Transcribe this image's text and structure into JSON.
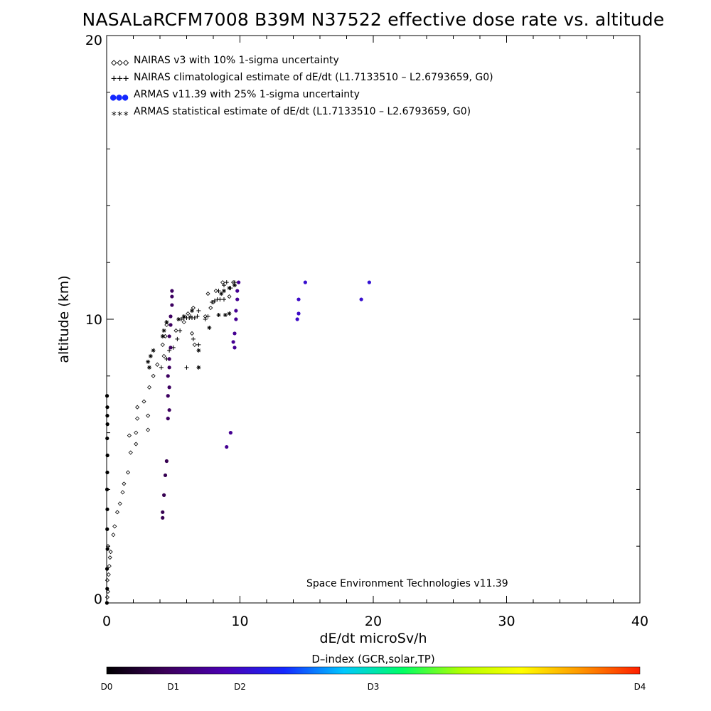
{
  "chart_data": {
    "type": "scatter",
    "title": "NASALaRCFM7008  B39M N37522 effective dose rate vs. altitude",
    "xlabel": "dE/dt microSv/h",
    "ylabel": "altitude (km)",
    "xlim": [
      0,
      40
    ],
    "ylim": [
      0,
      20
    ],
    "x_ticks": [
      "0",
      "10",
      "20",
      "30",
      "40"
    ],
    "y_ticks": [
      "0",
      "10",
      "20"
    ],
    "legend_position": "top-left",
    "legend": [
      {
        "symbol": "◇◇◇",
        "label": "NAIRAS v3 with 10% 1-sigma uncertainty"
      },
      {
        "symbol": "+++",
        "label": "NAIRAS climatological estimate of dE/dt (L1.7133510 – L2.6793659, G0)"
      },
      {
        "symbol": "●●●",
        "label": "ARMAS v11.39 with 25% 1-sigma uncertainty"
      },
      {
        "symbol": "***",
        "label": "ARMAS statistical estimate of dE/dt (L1.7133510 – L2.6793659, G0)"
      }
    ],
    "footer": "Space Environment Technologies v11.39",
    "colorbar": {
      "title": "D–index (GCR,solar,TP)",
      "ticks": [
        "D0",
        "D1",
        "D2",
        "D3",
        "D4"
      ],
      "tick_positions": [
        0,
        0.125,
        0.25,
        0.5,
        1.0
      ],
      "colors": [
        "#000000",
        "#3c005a",
        "#4b00b4",
        "#1428ff",
        "#00c8ff",
        "#00ff64",
        "#b4ff00",
        "#ffff00",
        "#ff9600",
        "#ff1e00"
      ]
    },
    "series": [
      {
        "name": "NAIRAS v3 with 10% 1-sigma uncertainty",
        "marker": "diamond",
        "color": "#000000",
        "points": [
          [
            0.05,
            0.2
          ],
          [
            0.1,
            0.4
          ],
          [
            0.05,
            0.8
          ],
          [
            0.15,
            1.0
          ],
          [
            0.2,
            1.3
          ],
          [
            0.25,
            1.6
          ],
          [
            0.3,
            1.8
          ],
          [
            0.1,
            2.0
          ],
          [
            0.5,
            2.4
          ],
          [
            0.6,
            2.7
          ],
          [
            0.8,
            3.2
          ],
          [
            1.0,
            3.5
          ],
          [
            1.2,
            3.9
          ],
          [
            1.3,
            4.2
          ],
          [
            1.6,
            4.6
          ],
          [
            1.8,
            5.3
          ],
          [
            2.2,
            5.6
          ],
          [
            1.7,
            5.9
          ],
          [
            2.2,
            6.0
          ],
          [
            3.1,
            6.1
          ],
          [
            2.3,
            6.5
          ],
          [
            3.1,
            6.6
          ],
          [
            2.3,
            6.9
          ],
          [
            2.8,
            7.1
          ],
          [
            3.2,
            7.6
          ],
          [
            3.5,
            8.0
          ],
          [
            3.8,
            8.4
          ],
          [
            4.3,
            8.7
          ],
          [
            4.2,
            9.1
          ],
          [
            4.4,
            9.4
          ],
          [
            4.5,
            9.8
          ],
          [
            5.2,
            9.6
          ],
          [
            5.8,
            9.9
          ],
          [
            6.1,
            10.2
          ],
          [
            6.5,
            10.4
          ],
          [
            6.4,
            9.5
          ],
          [
            6.6,
            9.1
          ],
          [
            7.4,
            10.1
          ],
          [
            7.8,
            10.4
          ],
          [
            8.0,
            10.6
          ],
          [
            7.6,
            10.9
          ],
          [
            8.2,
            11.0
          ],
          [
            8.7,
            11.3
          ],
          [
            9.2,
            10.8
          ],
          [
            9.5,
            11.3
          ]
        ]
      },
      {
        "name": "NAIRAS climatological estimate of dE/dt (L1.7133510 – L2.6793659, G0)",
        "marker": "plus",
        "color": "#000000",
        "points": [
          [
            4.1,
            8.3
          ],
          [
            4.5,
            8.6
          ],
          [
            4.7,
            8.9
          ],
          [
            5.0,
            9.0
          ],
          [
            5.3,
            9.3
          ],
          [
            5.5,
            9.6
          ],
          [
            5.6,
            10.0
          ],
          [
            5.8,
            10.05
          ],
          [
            6.0,
            10.05
          ],
          [
            6.2,
            10.05
          ],
          [
            6.4,
            10.05
          ],
          [
            6.6,
            10.05
          ],
          [
            6.8,
            10.1
          ],
          [
            6.9,
            10.3
          ],
          [
            6.3,
            10.1
          ],
          [
            6.9,
            9.1
          ],
          [
            7.4,
            10.0
          ],
          [
            7.6,
            10.1
          ],
          [
            7.9,
            10.6
          ],
          [
            8.1,
            10.65
          ],
          [
            8.3,
            10.7
          ],
          [
            8.5,
            10.7
          ],
          [
            8.8,
            10.7
          ],
          [
            8.4,
            11.0
          ],
          [
            8.8,
            11.2
          ],
          [
            9.0,
            11.3
          ],
          [
            9.3,
            11.1
          ],
          [
            9.6,
            11.3
          ],
          [
            6.0,
            8.3
          ],
          [
            6.5,
            9.3
          ]
        ]
      },
      {
        "name": "ARMAS v11.39 with 25% 1-sigma uncertainty",
        "marker": "dot",
        "color_by": "D-index",
        "points": [
          [
            0.02,
            0.0,
            0.0
          ],
          [
            0.04,
            0.5,
            0.0
          ],
          [
            0.03,
            1.2,
            0.0
          ],
          [
            0.06,
            1.9,
            0.0
          ],
          [
            0.04,
            2.6,
            0.0
          ],
          [
            0.05,
            3.3,
            0.0
          ],
          [
            0.03,
            4.0,
            0.0
          ],
          [
            0.05,
            4.6,
            0.0
          ],
          [
            0.06,
            5.2,
            0.0
          ],
          [
            0.04,
            5.8,
            0.0
          ],
          [
            0.06,
            6.3,
            0.0
          ],
          [
            0.05,
            6.6,
            0.0
          ],
          [
            0.05,
            6.9,
            0.0
          ],
          [
            0.03,
            7.3,
            0.0
          ],
          [
            4.2,
            3.0,
            0.1
          ],
          [
            4.2,
            3.2,
            0.1
          ],
          [
            4.3,
            3.8,
            0.1
          ],
          [
            4.4,
            4.5,
            0.1
          ],
          [
            4.5,
            5.0,
            0.1
          ],
          [
            4.6,
            6.5,
            0.12
          ],
          [
            4.7,
            6.8,
            0.12
          ],
          [
            4.6,
            7.3,
            0.12
          ],
          [
            4.7,
            7.6,
            0.12
          ],
          [
            4.6,
            8.0,
            0.12
          ],
          [
            4.7,
            8.3,
            0.12
          ],
          [
            4.7,
            8.6,
            0.12
          ],
          [
            4.8,
            9.0,
            0.12
          ],
          [
            4.7,
            9.4,
            0.12
          ],
          [
            4.8,
            9.8,
            0.12
          ],
          [
            4.8,
            10.1,
            0.12
          ],
          [
            4.9,
            10.5,
            0.12
          ],
          [
            4.9,
            10.8,
            0.12
          ],
          [
            4.9,
            11.0,
            0.12
          ],
          [
            9.0,
            5.5,
            0.18
          ],
          [
            9.3,
            6.0,
            0.18
          ],
          [
            9.6,
            9.0,
            0.18
          ],
          [
            9.5,
            9.2,
            0.18
          ],
          [
            9.6,
            9.5,
            0.18
          ],
          [
            9.7,
            10.0,
            0.18
          ],
          [
            9.7,
            10.3,
            0.18
          ],
          [
            9.8,
            10.7,
            0.18
          ],
          [
            9.8,
            11.0,
            0.18
          ],
          [
            9.9,
            11.3,
            0.18
          ],
          [
            14.3,
            10.0,
            0.25
          ],
          [
            14.4,
            10.2,
            0.25
          ],
          [
            14.4,
            10.7,
            0.25
          ],
          [
            14.9,
            11.3,
            0.26
          ],
          [
            19.1,
            10.7,
            0.26
          ],
          [
            19.7,
            11.3,
            0.27
          ]
        ]
      },
      {
        "name": "ARMAS statistical estimate of dE/dt (L1.7133510 – L2.6793659, G0)",
        "marker": "asterisk",
        "color": "#000000",
        "points": [
          [
            3.1,
            8.5
          ],
          [
            3.3,
            8.7
          ],
          [
            3.5,
            8.9
          ],
          [
            3.2,
            8.3
          ],
          [
            4.2,
            9.4
          ],
          [
            4.3,
            9.6
          ],
          [
            4.5,
            9.9
          ],
          [
            5.4,
            10.0
          ],
          [
            5.8,
            10.1
          ],
          [
            6.4,
            10.3
          ],
          [
            6.9,
            8.9
          ],
          [
            6.9,
            8.3
          ],
          [
            7.7,
            9.7
          ],
          [
            8.4,
            10.15
          ],
          [
            8.9,
            10.15
          ],
          [
            9.2,
            10.2
          ],
          [
            8.6,
            10.9
          ],
          [
            8.8,
            11.0
          ],
          [
            9.2,
            11.1
          ],
          [
            9.6,
            11.2
          ]
        ]
      }
    ]
  }
}
